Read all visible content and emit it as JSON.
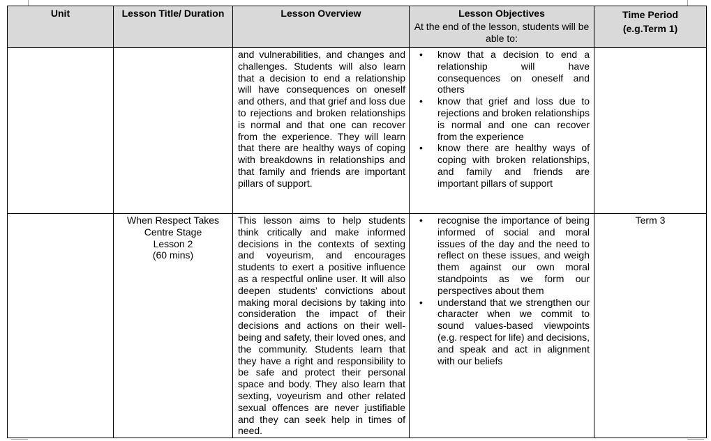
{
  "table": {
    "headers": {
      "unit": "Unit",
      "title": "Lesson Title/ Duration",
      "overview": "Lesson Overview",
      "objectives": "Lesson Objectives",
      "objectives_sub": "At the end of the lesson, students will be able to:",
      "time": "Time Period",
      "time_sub": "(e.g.Term 1)"
    },
    "rows": [
      {
        "unit": "",
        "title": "",
        "duration": "",
        "overview": "and vulnerabilities, and changes and challenges. Students will also learn that a decision to end a relationship will have consequences on oneself and others, and that grief and loss due to rejections and broken relationships is normal and that one can recover from the experience. They will learn that there are healthy ways of coping with breakdowns in relationships and that family and friends are important pillars of support.",
        "objectives": [
          "know that a decision to end a relationship will have consequences on oneself and others",
          "know that grief and loss due to rejections and broken relationships is normal and one can recover from the experience",
          "know there are healthy ways of coping with broken relationships, and family and friends are important pillars of support"
        ],
        "time": ""
      },
      {
        "unit": "",
        "title": "When Respect Takes Centre Stage",
        "lesson": "Lesson 2",
        "duration": "(60 mins)",
        "overview": "This lesson aims to help students think critically and make informed decisions in the contexts of sexting and voyeurism, and encourages students to exert a positive influence as a respectful online user. It will also deepen students’ convictions about making moral decisions by taking into consideration the impact of their decisions and actions on their well-being and safety, their loved ones, and the community. Students learn that they have a right and responsibility to be safe and protect their personal space and body. They also learn that sexting, voyeurism and other related sexual offences are never justifiable and they can seek help in times of need.",
        "objectives": [
          "recognise the importance of being informed of social and moral issues of the day and the need to reflect on these issues, and weigh them against our own moral standpoints as we form our perspectives about them",
          "understand that we strengthen our character when we commit to sound values-based viewpoints (e.g. respect for life) and decisions, and speak and act in alignment with our beliefs"
        ],
        "time": "Term 3"
      }
    ]
  }
}
